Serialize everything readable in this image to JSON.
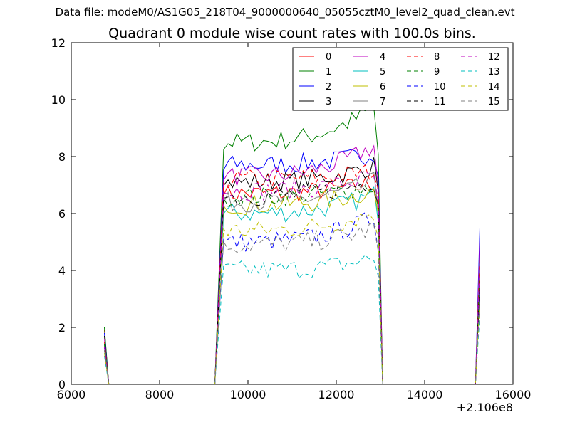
{
  "suptitle": "Data file: modeM0/AS1G05_218T04_9000000640_05055cztM0_level2_quad_clean.evt",
  "chart_data": {
    "type": "line",
    "title": "Quadrant 0 module wise count rates with 100.0s bins.",
    "xlabel": "",
    "ylabel": "",
    "x_offset_label": "+2.106e8",
    "xlim": [
      6000,
      16000
    ],
    "ylim": [
      0,
      12
    ],
    "xticks": [
      "6000",
      "8000",
      "10000",
      "12000",
      "14000",
      "16000"
    ],
    "yticks": [
      "0",
      "2",
      "4",
      "6",
      "8",
      "10",
      "12"
    ],
    "grid": false,
    "legend_position": "top-right",
    "series": [
      {
        "name": "0",
        "color": "#ff0000",
        "dash": "solid",
        "first": 1.9,
        "level": 6.7,
        "end": 7.2,
        "spike": 3.8
      },
      {
        "name": "1",
        "color": "#008000",
        "dash": "solid",
        "first": 2.0,
        "level": 8.5,
        "end": 10.2,
        "spike": 4.2
      },
      {
        "name": "2",
        "color": "#0000ff",
        "dash": "solid",
        "first": 1.8,
        "level": 7.7,
        "end": 8.3,
        "spike": 5.5
      },
      {
        "name": "3",
        "color": "#000000",
        "dash": "solid",
        "first": 1.7,
        "level": 7.1,
        "end": 7.9,
        "spike": 3.5
      },
      {
        "name": "4",
        "color": "#bf00bf",
        "dash": "solid",
        "first": 1.6,
        "level": 7.3,
        "end": 8.8,
        "spike": 5.1
      },
      {
        "name": "5",
        "color": "#00bfbf",
        "dash": "solid",
        "first": 1.5,
        "level": 6.0,
        "end": 6.9,
        "spike": 4.5
      },
      {
        "name": "6",
        "color": "#bfbf00",
        "dash": "solid",
        "first": 1.4,
        "level": 6.3,
        "end": 7.0,
        "spike": 4.0
      },
      {
        "name": "7",
        "color": "#808080",
        "dash": "solid",
        "first": 1.3,
        "level": 6.4,
        "end": 7.4,
        "spike": 3.6
      },
      {
        "name": "8",
        "color": "#ff0000",
        "dash": "dashed",
        "first": 1.5,
        "level": 7.2,
        "end": 7.6,
        "spike": 4.4
      },
      {
        "name": "9",
        "color": "#008000",
        "dash": "dashed",
        "first": 1.4,
        "level": 6.6,
        "end": 7.1,
        "spike": 3.9
      },
      {
        "name": "10",
        "color": "#0000ff",
        "dash": "dashed",
        "first": 1.3,
        "level": 5.0,
        "end": 6.2,
        "spike": 3.3
      },
      {
        "name": "11",
        "color": "#000000",
        "dash": "dashed",
        "first": 1.2,
        "level": 6.6,
        "end": 7.4,
        "spike": 3.7
      },
      {
        "name": "12",
        "color": "#bf00bf",
        "dash": "dashed",
        "first": 1.3,
        "level": 6.8,
        "end": 7.5,
        "spike": 4.2
      },
      {
        "name": "13",
        "color": "#00bfbf",
        "dash": "dashed",
        "first": 1.0,
        "level": 4.0,
        "end": 4.6,
        "spike": 2.5
      },
      {
        "name": "14",
        "color": "#bfbf00",
        "dash": "dashed",
        "first": 1.1,
        "level": 5.4,
        "end": 6.3,
        "spike": 3.0
      },
      {
        "name": "15",
        "color": "#808080",
        "dash": "dashed",
        "first": 1.2,
        "level": 4.9,
        "end": 5.7,
        "spike": 2.8
      }
    ],
    "segments": [
      {
        "x_start": 6750,
        "x_end": 6850
      },
      {
        "x_start": 9250,
        "x_end": 13050
      },
      {
        "x_start": 15150,
        "x_end": 15250
      }
    ]
  }
}
